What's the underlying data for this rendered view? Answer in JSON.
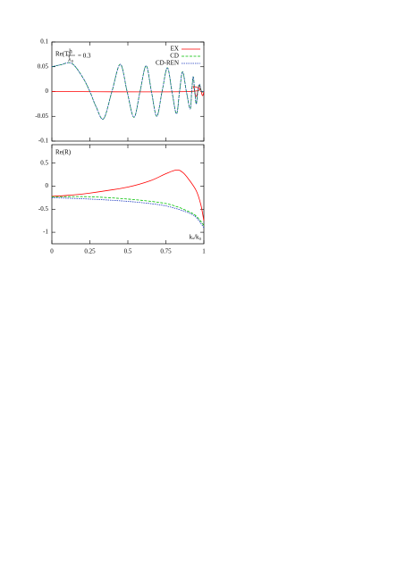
{
  "chart_data": [
    {
      "type": "line",
      "xlim": [
        0,
        1
      ],
      "xticks": [
        0,
        0.25,
        0.5,
        0.75,
        1
      ],
      "show_xtick_labels": false,
      "ylim": [
        -0.1,
        0.1
      ],
      "yticks": [
        -0.1,
        -0.05,
        0,
        0.05,
        0.1
      ],
      "annotations": [
        "Re(T)",
        "h",
        "λ₀",
        "= 0.3"
      ],
      "legend": "top right",
      "series": [
        {
          "name": "EX",
          "color": "#ff0000",
          "style": "solid",
          "x": [
            0,
            0.9,
            0.93,
            0.95,
            0.97,
            0.99,
            1
          ],
          "values": [
            0,
            0,
            0.01,
            -0.01,
            0.012,
            -0.008,
            0
          ]
        },
        {
          "name": "CD",
          "color": "#00c000",
          "style": "dashed",
          "x": [
            0,
            0.06,
            0.13,
            0.2,
            0.25,
            0.29,
            0.34,
            0.395,
            0.45,
            0.495,
            0.54,
            0.58,
            0.62,
            0.655,
            0.69,
            0.725,
            0.76,
            0.79,
            0.82,
            0.84,
            0.86,
            0.885,
            0.91,
            0.92,
            0.93,
            0.94,
            0.95,
            0.96,
            0.97,
            0.985,
            1
          ],
          "values": [
            0.05,
            0.054,
            0.057,
            0.03,
            0,
            -0.03,
            -0.055,
            0,
            0.055,
            0,
            -0.052,
            0,
            0.052,
            0,
            -0.05,
            0,
            0.048,
            0,
            -0.045,
            0,
            0.04,
            0,
            -0.035,
            0,
            0.03,
            0,
            -0.025,
            0,
            0.015,
            0,
            0
          ]
        },
        {
          "name": "CD-REN",
          "color": "#1f3cc0",
          "style": "dotted",
          "x": [
            0,
            0.06,
            0.13,
            0.2,
            0.25,
            0.29,
            0.34,
            0.395,
            0.45,
            0.495,
            0.54,
            0.58,
            0.62,
            0.655,
            0.69,
            0.725,
            0.76,
            0.79,
            0.82,
            0.84,
            0.86,
            0.885,
            0.91,
            0.92,
            0.93,
            0.94,
            0.95,
            0.96,
            0.97,
            0.985,
            1
          ],
          "values": [
            0.05,
            0.054,
            0.057,
            0.03,
            0,
            -0.03,
            -0.055,
            0,
            0.055,
            0,
            -0.052,
            0,
            0.052,
            0,
            -0.05,
            0,
            0.048,
            0,
            -0.045,
            0,
            0.04,
            0,
            -0.035,
            0,
            0.03,
            0,
            -0.025,
            0,
            0.015,
            0,
            0
          ]
        }
      ]
    },
    {
      "type": "line",
      "xlim": [
        0,
        1
      ],
      "xticks": [
        0,
        0.25,
        0.5,
        0.75,
        1
      ],
      "show_xtick_labels": true,
      "ylim": [
        -1.25,
        0.9
      ],
      "yticks": [
        -1,
        -0.5,
        0,
        0.5
      ],
      "annotations": [
        "Re(R)",
        "kₓ/k₀"
      ],
      "series": [
        {
          "color": "#ff0000",
          "style": "solid",
          "x": [
            0,
            0.1,
            0.25,
            0.5,
            0.65,
            0.75,
            0.82,
            0.86,
            0.9,
            0.95,
            0.98,
            1
          ],
          "values": [
            -0.22,
            -0.2,
            -0.15,
            -0.02,
            0.12,
            0.27,
            0.35,
            0.3,
            0.15,
            -0.1,
            -0.4,
            -0.75
          ]
        },
        {
          "color": "#00c000",
          "style": "dashed",
          "x": [
            0,
            0.25,
            0.5,
            0.7,
            0.8,
            0.9,
            0.95,
            1
          ],
          "values": [
            -0.23,
            -0.23,
            -0.28,
            -0.35,
            -0.42,
            -0.55,
            -0.65,
            -0.85
          ]
        },
        {
          "color": "#1f3cc0",
          "style": "dotted",
          "x": [
            0,
            0.25,
            0.5,
            0.7,
            0.8,
            0.9,
            0.95,
            1
          ],
          "values": [
            -0.25,
            -0.28,
            -0.33,
            -0.4,
            -0.47,
            -0.58,
            -0.68,
            -0.9
          ]
        }
      ]
    }
  ]
}
